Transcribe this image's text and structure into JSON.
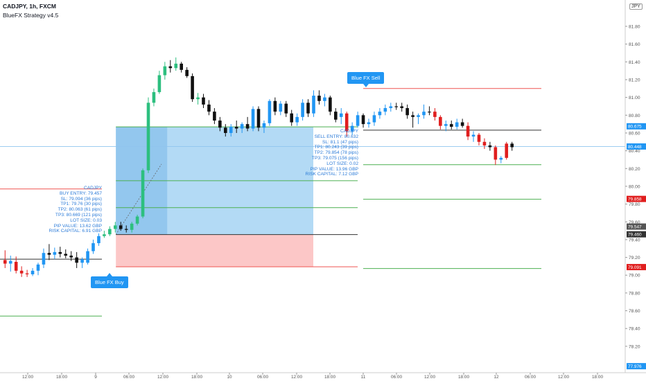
{
  "header": {
    "title": "CADJPY, 1h, FXCM",
    "strategy": "BlueFX Strategy v4.5",
    "currency_badge": "JPY"
  },
  "colors": {
    "bull": "#2196f3",
    "bear": "#e01e1e",
    "neutral_bull": "#2dbf7f",
    "neutral_bear": "#111111",
    "tp_line": "#4caf50",
    "sl_line": "#ef5350",
    "entry_line": "#333333",
    "profit_zone": "#b3daf5",
    "profit_zone_dark": "#93c7ee",
    "loss_zone": "#fcc7c7",
    "label_text": "#2a7ad8",
    "signal_bg": "#2196f3"
  },
  "chart_data": {
    "type": "candlestick",
    "symbol": "CADJPY",
    "timeframe": "1h",
    "ylim": [
      77.97,
      81.98
    ],
    "y_ticks": [
      "81.80",
      "81.60",
      "81.40",
      "81.20",
      "81.00",
      "80.80",
      "80.60",
      "80.40",
      "80.20",
      "80.00",
      "79.80",
      "79.60",
      "79.40",
      "79.20",
      "79.00",
      "78.80",
      "78.60",
      "78.40",
      "78.20"
    ],
    "x_ticks": [
      "12:00",
      "18:00",
      "9",
      "06:00",
      "12:00",
      "18:00",
      "10",
      "06:00",
      "12:00",
      "18:00",
      "11",
      "06:00",
      "12:00",
      "18:00",
      "12",
      "06:00",
      "12:00",
      "18:00"
    ],
    "price_badges": [
      {
        "text": "80.675",
        "price": 80.675,
        "color": "#2196f3"
      },
      {
        "text": "80.448",
        "price": 80.448,
        "color": "#2196f3"
      },
      {
        "text": "79.858",
        "price": 79.858,
        "color": "#e01e1e"
      },
      {
        "text": "79.547",
        "price": 79.547,
        "color": "#555555"
      },
      {
        "text": "79.460",
        "price": 79.46,
        "color": "#333333"
      },
      {
        "text": "79.091",
        "price": 79.091,
        "color": "#e01e1e"
      },
      {
        "text": "77.976",
        "price": 77.976,
        "color": "#2196f3"
      }
    ],
    "candles": [
      {
        "o": 79.17,
        "h": 79.28,
        "l": 79.08,
        "c": 79.13,
        "col": "bear"
      },
      {
        "o": 79.13,
        "h": 79.22,
        "l": 79.04,
        "c": 79.16,
        "col": "bull"
      },
      {
        "o": 79.15,
        "h": 79.21,
        "l": 79.02,
        "c": 79.05,
        "col": "bear"
      },
      {
        "o": 79.05,
        "h": 79.1,
        "l": 78.98,
        "c": 79.02,
        "col": "bear"
      },
      {
        "o": 79.02,
        "h": 79.06,
        "l": 78.98,
        "c": 79.01,
        "col": "bear"
      },
      {
        "o": 79.01,
        "h": 79.08,
        "l": 78.99,
        "c": 79.05,
        "col": "bull"
      },
      {
        "o": 79.05,
        "h": 79.14,
        "l": 79.0,
        "c": 79.12,
        "col": "bull"
      },
      {
        "o": 79.12,
        "h": 79.3,
        "l": 79.08,
        "c": 79.25,
        "col": "bull"
      },
      {
        "o": 79.25,
        "h": 79.35,
        "l": 79.17,
        "c": 79.23,
        "col": "neutral_bear"
      },
      {
        "o": 79.23,
        "h": 79.31,
        "l": 79.18,
        "c": 79.26,
        "col": "bull"
      },
      {
        "o": 79.26,
        "h": 79.32,
        "l": 79.2,
        "c": 79.24,
        "col": "neutral_bear"
      },
      {
        "o": 79.24,
        "h": 79.29,
        "l": 79.19,
        "c": 79.22,
        "col": "neutral_bear"
      },
      {
        "o": 79.22,
        "h": 79.27,
        "l": 79.16,
        "c": 79.2,
        "col": "neutral_bear"
      },
      {
        "o": 79.2,
        "h": 79.26,
        "l": 79.08,
        "c": 79.14,
        "col": "neutral_bear"
      },
      {
        "o": 79.14,
        "h": 79.2,
        "l": 79.08,
        "c": 79.18,
        "col": "bull"
      },
      {
        "o": 79.14,
        "h": 79.3,
        "l": 79.12,
        "c": 79.27,
        "col": "bull"
      },
      {
        "o": 79.27,
        "h": 79.4,
        "l": 79.24,
        "c": 79.36,
        "col": "bull"
      },
      {
        "o": 79.36,
        "h": 79.47,
        "l": 79.33,
        "c": 79.44,
        "col": "bull"
      },
      {
        "o": 79.44,
        "h": 79.5,
        "l": 79.42,
        "c": 79.46,
        "col": "neutral_bull"
      },
      {
        "o": 79.46,
        "h": 79.55,
        "l": 79.44,
        "c": 79.52,
        "col": "neutral_bull"
      },
      {
        "o": 79.52,
        "h": 79.6,
        "l": 79.48,
        "c": 79.56,
        "col": "neutral_bull"
      },
      {
        "o": 79.56,
        "h": 79.6,
        "l": 79.5,
        "c": 79.52,
        "col": "neutral_bear"
      },
      {
        "o": 79.52,
        "h": 79.56,
        "l": 79.48,
        "c": 79.51,
        "col": "neutral_bear"
      },
      {
        "o": 79.51,
        "h": 79.6,
        "l": 79.48,
        "c": 79.58,
        "col": "neutral_bull"
      },
      {
        "o": 79.58,
        "h": 79.68,
        "l": 79.56,
        "c": 79.66,
        "col": "neutral_bull"
      },
      {
        "o": 79.66,
        "h": 80.2,
        "l": 79.64,
        "c": 80.18,
        "col": "neutral_bull"
      },
      {
        "o": 80.18,
        "h": 81.0,
        "l": 80.15,
        "c": 80.94,
        "col": "neutral_bull"
      },
      {
        "o": 80.94,
        "h": 81.1,
        "l": 80.9,
        "c": 81.06,
        "col": "neutral_bull"
      },
      {
        "o": 81.06,
        "h": 81.3,
        "l": 81.04,
        "c": 81.25,
        "col": "neutral_bull"
      },
      {
        "o": 81.25,
        "h": 81.4,
        "l": 81.2,
        "c": 81.35,
        "col": "neutral_bull"
      },
      {
        "o": 81.35,
        "h": 81.42,
        "l": 81.28,
        "c": 81.33,
        "col": "neutral_bear"
      },
      {
        "o": 81.33,
        "h": 81.45,
        "l": 81.3,
        "c": 81.38,
        "col": "neutral_bull"
      },
      {
        "o": 81.38,
        "h": 81.4,
        "l": 81.28,
        "c": 81.31,
        "col": "neutral_bear"
      },
      {
        "o": 81.31,
        "h": 81.34,
        "l": 81.22,
        "c": 81.24,
        "col": "neutral_bear"
      },
      {
        "o": 81.24,
        "h": 81.27,
        "l": 80.95,
        "c": 80.98,
        "col": "neutral_bear"
      },
      {
        "o": 80.98,
        "h": 81.05,
        "l": 80.92,
        "c": 81.0,
        "col": "neutral_bull"
      },
      {
        "o": 81.0,
        "h": 81.04,
        "l": 80.88,
        "c": 80.92,
        "col": "neutral_bear"
      },
      {
        "o": 80.92,
        "h": 80.97,
        "l": 80.8,
        "c": 80.84,
        "col": "neutral_bear"
      },
      {
        "o": 80.84,
        "h": 80.88,
        "l": 80.7,
        "c": 80.74,
        "col": "neutral_bear"
      },
      {
        "o": 80.74,
        "h": 80.78,
        "l": 80.62,
        "c": 80.66,
        "col": "neutral_bear"
      },
      {
        "o": 80.66,
        "h": 80.7,
        "l": 80.56,
        "c": 80.6,
        "col": "neutral_bear"
      },
      {
        "o": 80.6,
        "h": 80.7,
        "l": 80.56,
        "c": 80.67,
        "col": "bull"
      },
      {
        "o": 80.67,
        "h": 80.74,
        "l": 80.6,
        "c": 80.65,
        "col": "neutral_bear"
      },
      {
        "o": 80.65,
        "h": 80.72,
        "l": 80.6,
        "c": 80.7,
        "col": "bull"
      },
      {
        "o": 80.7,
        "h": 80.78,
        "l": 80.62,
        "c": 80.65,
        "col": "neutral_bear"
      },
      {
        "o": 80.65,
        "h": 80.9,
        "l": 80.62,
        "c": 80.87,
        "col": "bull"
      },
      {
        "o": 80.87,
        "h": 80.9,
        "l": 80.62,
        "c": 80.66,
        "col": "neutral_bear"
      },
      {
        "o": 80.66,
        "h": 80.74,
        "l": 80.6,
        "c": 80.71,
        "col": "bull"
      },
      {
        "o": 80.71,
        "h": 80.98,
        "l": 80.68,
        "c": 80.96,
        "col": "bull"
      },
      {
        "o": 80.96,
        "h": 81.0,
        "l": 80.8,
        "c": 80.84,
        "col": "neutral_bear"
      },
      {
        "o": 80.84,
        "h": 80.96,
        "l": 80.8,
        "c": 80.93,
        "col": "bull"
      },
      {
        "o": 80.93,
        "h": 80.96,
        "l": 80.78,
        "c": 80.82,
        "col": "neutral_bear"
      },
      {
        "o": 80.82,
        "h": 80.86,
        "l": 80.68,
        "c": 80.72,
        "col": "neutral_bear"
      },
      {
        "o": 80.72,
        "h": 80.82,
        "l": 80.68,
        "c": 80.78,
        "col": "bull"
      },
      {
        "o": 80.78,
        "h": 80.98,
        "l": 80.74,
        "c": 80.94,
        "col": "bull"
      },
      {
        "o": 80.94,
        "h": 80.98,
        "l": 80.78,
        "c": 80.82,
        "col": "neutral_bear"
      },
      {
        "o": 80.82,
        "h": 81.08,
        "l": 80.78,
        "c": 81.02,
        "col": "bull"
      },
      {
        "o": 81.02,
        "h": 81.08,
        "l": 80.92,
        "c": 80.96,
        "col": "neutral_bear"
      },
      {
        "o": 80.96,
        "h": 81.04,
        "l": 80.9,
        "c": 81.0,
        "col": "bull"
      },
      {
        "o": 81.0,
        "h": 81.02,
        "l": 80.8,
        "c": 80.84,
        "col": "neutral_bear"
      },
      {
        "o": 80.84,
        "h": 80.88,
        "l": 80.72,
        "c": 80.75,
        "col": "neutral_bear"
      },
      {
        "o": 80.78,
        "h": 80.88,
        "l": 80.7,
        "c": 80.82,
        "col": "bull"
      },
      {
        "o": 80.82,
        "h": 80.84,
        "l": 80.56,
        "c": 80.62,
        "col": "bear"
      },
      {
        "o": 80.62,
        "h": 80.72,
        "l": 80.58,
        "c": 80.68,
        "col": "bull"
      },
      {
        "o": 80.68,
        "h": 80.84,
        "l": 80.66,
        "c": 80.8,
        "col": "bull"
      },
      {
        "o": 80.8,
        "h": 80.82,
        "l": 80.66,
        "c": 80.7,
        "col": "neutral_bear"
      },
      {
        "o": 80.7,
        "h": 80.76,
        "l": 80.66,
        "c": 80.72,
        "col": "bull"
      },
      {
        "o": 80.72,
        "h": 80.84,
        "l": 80.68,
        "c": 80.8,
        "col": "bull"
      },
      {
        "o": 80.8,
        "h": 80.88,
        "l": 80.76,
        "c": 80.84,
        "col": "bull"
      },
      {
        "o": 80.84,
        "h": 80.92,
        "l": 80.8,
        "c": 80.88,
        "col": "bull"
      },
      {
        "o": 80.88,
        "h": 80.94,
        "l": 80.84,
        "c": 80.9,
        "col": "bull"
      },
      {
        "o": 80.9,
        "h": 80.94,
        "l": 80.86,
        "c": 80.9,
        "col": "neutral_bear"
      },
      {
        "o": 80.9,
        "h": 80.94,
        "l": 80.84,
        "c": 80.88,
        "col": "neutral_bear"
      },
      {
        "o": 80.88,
        "h": 80.92,
        "l": 80.76,
        "c": 80.8,
        "col": "neutral_bear"
      },
      {
        "o": 80.8,
        "h": 80.84,
        "l": 80.66,
        "c": 80.78,
        "col": "neutral_bear"
      },
      {
        "o": 80.78,
        "h": 80.82,
        "l": 80.7,
        "c": 80.8,
        "col": "bull"
      },
      {
        "o": 80.8,
        "h": 80.92,
        "l": 80.76,
        "c": 80.84,
        "col": "bull"
      },
      {
        "o": 80.84,
        "h": 80.9,
        "l": 80.8,
        "c": 80.84,
        "col": "neutral_bear"
      },
      {
        "o": 80.84,
        "h": 80.88,
        "l": 80.74,
        "c": 80.78,
        "col": "bear"
      },
      {
        "o": 80.78,
        "h": 80.8,
        "l": 80.64,
        "c": 80.68,
        "col": "bear"
      },
      {
        "o": 80.68,
        "h": 80.74,
        "l": 80.62,
        "c": 80.7,
        "col": "bull"
      },
      {
        "o": 80.7,
        "h": 80.74,
        "l": 80.64,
        "c": 80.67,
        "col": "neutral_bear"
      },
      {
        "o": 80.67,
        "h": 80.76,
        "l": 80.64,
        "c": 80.72,
        "col": "bull"
      },
      {
        "o": 80.72,
        "h": 80.76,
        "l": 80.66,
        "c": 80.68,
        "col": "neutral_bear"
      },
      {
        "o": 80.68,
        "h": 80.72,
        "l": 80.52,
        "c": 80.56,
        "col": "bear"
      },
      {
        "o": 80.56,
        "h": 80.62,
        "l": 80.5,
        "c": 80.58,
        "col": "bull"
      },
      {
        "o": 80.58,
        "h": 80.6,
        "l": 80.46,
        "c": 80.5,
        "col": "bear"
      },
      {
        "o": 80.5,
        "h": 80.54,
        "l": 80.42,
        "c": 80.46,
        "col": "bear"
      },
      {
        "o": 80.46,
        "h": 80.5,
        "l": 80.4,
        "c": 80.44,
        "col": "neutral_bear"
      },
      {
        "o": 80.44,
        "h": 80.46,
        "l": 80.24,
        "c": 80.3,
        "col": "bear"
      },
      {
        "o": 80.3,
        "h": 80.34,
        "l": 80.26,
        "c": 80.32,
        "col": "bull"
      },
      {
        "o": 80.32,
        "h": 80.5,
        "l": 80.3,
        "c": 80.48,
        "col": "bear"
      },
      {
        "o": 80.48,
        "h": 80.5,
        "l": 80.4,
        "c": 80.44,
        "col": "neutral_bear"
      }
    ],
    "trades": [
      {
        "name": "buy",
        "zone_start_index": 16,
        "zone_end_index": 58,
        "entry": 79.457,
        "sl": 79.094,
        "tp1": 79.76,
        "tp2": 80.063,
        "tp3": 80.669,
        "dark_zone_until_index": 29,
        "labels": [
          "CADJPY",
          "BUY ENTRY: 79.457",
          "SL: 79.094 (36 pips)",
          "TP1: 79.76 (30 pips)",
          "TP2: 80.063 (61 pips)",
          "TP3: 80.669 (121 pips)",
          "LOT SIZE: 0.03",
          "PIP VALUE: 13.62 GBP",
          "RISK CAPITAL: 6.91 GBP"
        ],
        "signal": "Blue FX Buy"
      },
      {
        "name": "sell",
        "zone_start_index": 63,
        "zone_end_index": 95,
        "entry": 80.632,
        "sl": 81.1,
        "tp1": 80.243,
        "tp2": 79.854,
        "tp3": 79.075,
        "labels": [
          "CADJPY",
          "SELL ENTRY: 80.632",
          "SL: 81.1 (47 pips)",
          "TP1: 80.243 (39 pips)",
          "TP2: 79.854 (78 pips)",
          "TP3: 79.075 (156 pips)",
          "LOT SIZE: 0.02",
          "PIP VALUE: 13.96 GBP",
          "RISK CAPITAL: 7.12 GBP"
        ],
        "signal": "Blue FX Sell"
      }
    ],
    "pre_trade_levels": {
      "sl": 79.97,
      "entry": 79.18,
      "tp": 78.54
    },
    "current_price_line": 80.448
  }
}
